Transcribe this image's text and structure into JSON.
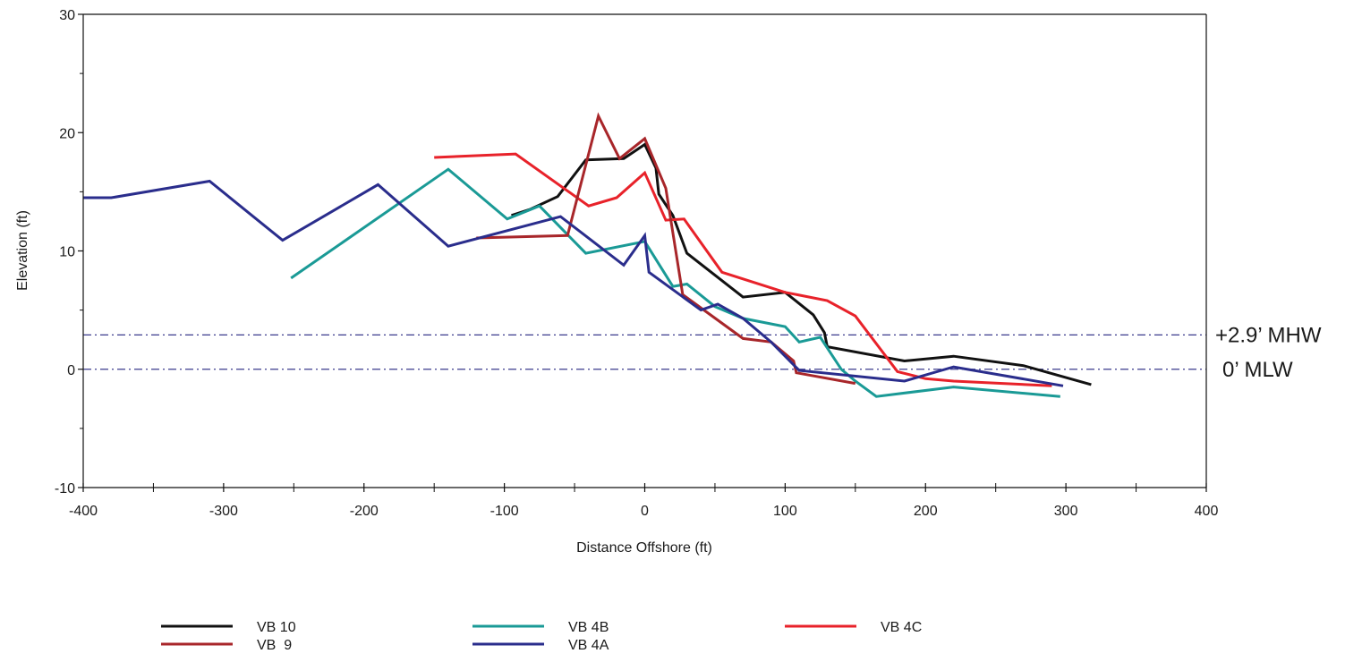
{
  "chart_data": {
    "type": "line",
    "xlabel": "Distance Offshore (ft)",
    "ylabel": "Elevation (ft)",
    "xlim": [
      -400,
      400
    ],
    "ylim": [
      -10,
      30
    ],
    "x_ticks": [
      -400,
      -300,
      -200,
      -100,
      0,
      100,
      200,
      300,
      400
    ],
    "y_ticks": [
      -10,
      0,
      10,
      20,
      30
    ],
    "grid": false,
    "legend_position": "bottom",
    "reference_lines": [
      {
        "label": "+2.9’ MHW",
        "y": 2.9,
        "color": "#3a3a8c"
      },
      {
        "label": "0’ MLW",
        "y": 0,
        "color": "#3a3a8c"
      }
    ],
    "series": [
      {
        "name": "VB 10",
        "color": "#111111",
        "x": [
          -95,
          -82,
          -62,
          -42,
          -15,
          0,
          8,
          10,
          20,
          30,
          70,
          100,
          120,
          128,
          130,
          185,
          220,
          270,
          318
        ],
        "y": [
          13.0,
          13.5,
          14.6,
          17.7,
          17.8,
          19.0,
          17.0,
          14.8,
          13.0,
          9.8,
          6.1,
          6.5,
          4.6,
          3.1,
          1.9,
          0.7,
          1.1,
          0.3,
          -1.3
        ]
      },
      {
        "name": "VB 4B",
        "color": "#1a9a96",
        "x": [
          -252,
          -140,
          -98,
          -75,
          -42,
          0,
          20,
          30,
          50,
          70,
          100,
          110,
          125,
          140,
          150,
          165,
          220,
          296
        ],
        "y": [
          7.7,
          16.9,
          12.7,
          13.8,
          9.8,
          10.8,
          7.0,
          7.2,
          5.3,
          4.3,
          3.6,
          2.3,
          2.7,
          0.0,
          -1.0,
          -2.3,
          -1.5,
          -2.3
        ]
      },
      {
        "name": "VB 4C",
        "color": "#e8222a",
        "x": [
          -150,
          -92,
          -40,
          -20,
          0,
          15,
          28,
          55,
          100,
          130,
          150,
          180,
          200,
          220,
          290
        ],
        "y": [
          17.9,
          18.2,
          13.8,
          14.5,
          16.6,
          12.6,
          12.7,
          8.2,
          6.5,
          5.8,
          4.5,
          -0.2,
          -0.8,
          -1.0,
          -1.4
        ]
      },
      {
        "name": "VB  9",
        "color": "#a8262a",
        "x": [
          -120,
          -55,
          -33,
          -18,
          0,
          15,
          27,
          70,
          90,
          106,
          108,
          150
        ],
        "y": [
          11.1,
          11.3,
          21.4,
          17.8,
          19.5,
          15.3,
          6.3,
          2.6,
          2.3,
          0.7,
          -0.3,
          -1.2
        ]
      },
      {
        "name": "VB 4A",
        "color": "#2a2d8c",
        "x": [
          -400,
          -380,
          -310,
          -258,
          -190,
          -140,
          -60,
          -15,
          0,
          3,
          40,
          52,
          70,
          90,
          110,
          185,
          220,
          298
        ],
        "y": [
          14.5,
          14.5,
          15.9,
          10.9,
          15.6,
          10.4,
          12.9,
          8.8,
          11.3,
          8.2,
          5.0,
          5.5,
          4.3,
          2.3,
          -0.1,
          -1.0,
          0.2,
          -1.4
        ]
      }
    ]
  }
}
